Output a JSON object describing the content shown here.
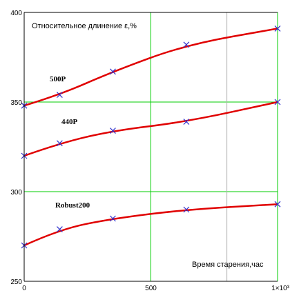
{
  "chart_data": {
    "type": "line",
    "title": "",
    "ylabel": "Относительное длинение ε,%",
    "xlabel": "Время старения,час",
    "xlim": [
      0,
      1000
    ],
    "ylim": [
      250,
      400
    ],
    "x_ticks": [
      0,
      500,
      1000
    ],
    "x_tick_labels": [
      "0",
      "500",
      "1×10³"
    ],
    "y_ticks": [
      250,
      300,
      350,
      400
    ],
    "y_tick_labels": [
      "250",
      "300",
      "350",
      "400"
    ],
    "grid_x": [
      500,
      1000
    ],
    "grid_y": [
      300,
      350
    ],
    "extra_vline_x": 800,
    "grid": true,
    "legend": "none",
    "colors": {
      "line": "#e00000",
      "marker": "#3333cc",
      "grid": "#00cc00",
      "extra_vline": "#b0b0b0",
      "axis": "#000000"
    },
    "series": [
      {
        "name": "500P",
        "x": [
          0,
          140,
          350,
          640,
          1000
        ],
        "y": [
          348,
          354,
          367,
          382,
          391
        ]
      },
      {
        "name": "440P",
        "x": [
          0,
          140,
          350,
          640,
          1000
        ],
        "y": [
          320,
          327,
          334,
          339,
          350
        ]
      },
      {
        "name": "Robust200",
        "x": [
          0,
          140,
          350,
          640,
          1000
        ],
        "y": [
          270,
          279,
          285,
          290,
          293
        ]
      }
    ]
  }
}
